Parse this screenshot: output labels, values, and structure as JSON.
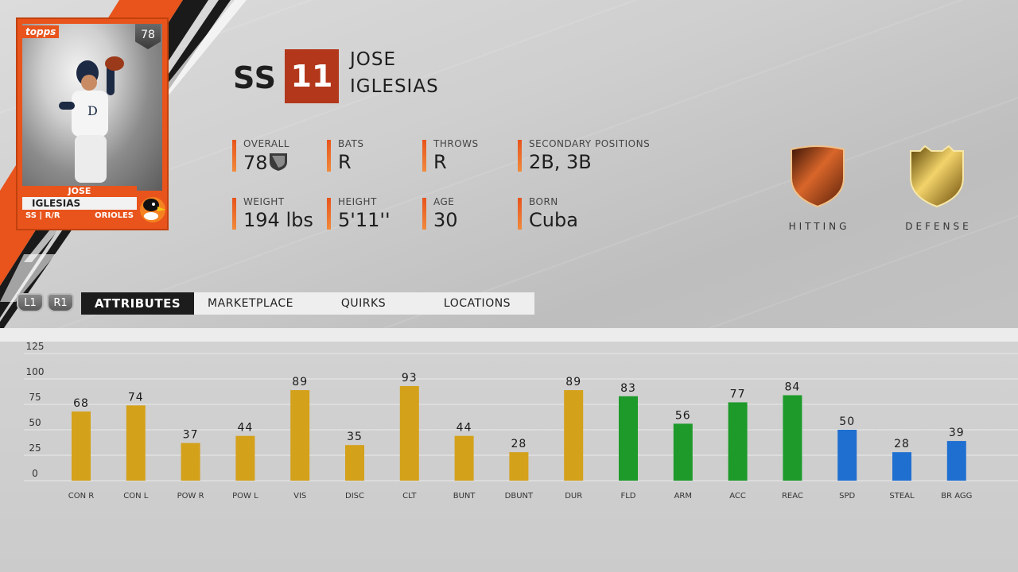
{
  "card": {
    "brand": "topps",
    "overall": "78",
    "first_name": "JOSE",
    "last_name": "IGLESIAS",
    "pos_hand": "SS | R/R",
    "team": "ORIOLES",
    "team_logo_icon": "orioles-bird-icon"
  },
  "header": {
    "position": "SS",
    "number": "11",
    "first_name": "JOSE",
    "last_name": "IGLESIAS"
  },
  "info": {
    "overall_label": "OVERALL",
    "overall_value": "78",
    "bats_label": "BATS",
    "bats_value": "R",
    "throws_label": "THROWS",
    "throws_value": "R",
    "secondary_label": "SECONDARY POSITIONS",
    "secondary_value": "2B, 3B",
    "weight_label": "WEIGHT",
    "weight_value": "194 lbs",
    "height_label": "HEIGHT",
    "height_value": "5'11''",
    "age_label": "AGE",
    "age_value": "30",
    "born_label": "BORN",
    "born_value": "Cuba"
  },
  "badges": {
    "hitting_label": "HITTING",
    "defense_label": "DEFENSE",
    "hitting_color": "#b84a1a",
    "defense_color": "#c9a227"
  },
  "nav": {
    "l1": "L1",
    "r1": "R1",
    "tabs": [
      "ATTRIBUTES",
      "MARKETPLACE",
      "QUIRKS",
      "LOCATIONS"
    ],
    "active_tab": 0
  },
  "chart_data": {
    "type": "bar",
    "ylim": [
      0,
      125
    ],
    "yticks": [
      0,
      25,
      50,
      75,
      100,
      125
    ],
    "grid": true,
    "categories": [
      "CON R",
      "CON L",
      "POW R",
      "POW L",
      "VIS",
      "DISC",
      "CLT",
      "BUNT",
      "DBUNT",
      "DUR",
      "FLD",
      "ARM",
      "ACC",
      "REAC",
      "SPD",
      "STEAL",
      "BR AGG"
    ],
    "values": [
      68,
      74,
      37,
      44,
      89,
      35,
      93,
      44,
      28,
      89,
      83,
      56,
      77,
      84,
      50,
      28,
      39
    ],
    "groups": [
      "hitting",
      "hitting",
      "hitting",
      "hitting",
      "hitting",
      "hitting",
      "hitting",
      "hitting",
      "hitting",
      "hitting",
      "defense",
      "defense",
      "defense",
      "defense",
      "running",
      "running",
      "running"
    ],
    "colors": {
      "hitting": "#d4a11a",
      "defense": "#1d9a2a",
      "running": "#1f6fd1"
    }
  }
}
